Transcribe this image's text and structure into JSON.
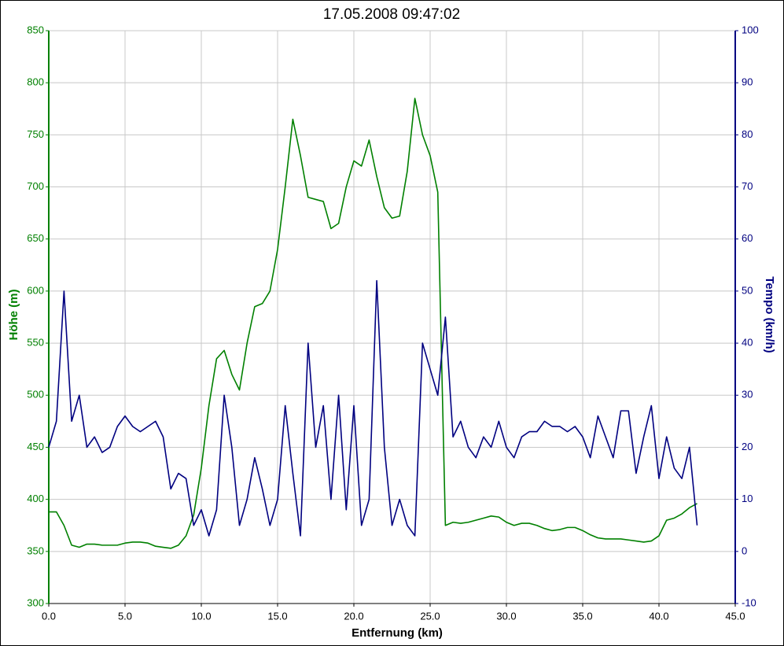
{
  "chart_data": {
    "type": "line",
    "title": "17.05.2008 09:47:02",
    "x_label": "Entfernung (km)",
    "y_label": "Höhe (m)",
    "y2_label": "Tempo (km/h)",
    "x": [
      0,
      0.5,
      1,
      1.5,
      2,
      2.5,
      3,
      3.5,
      4,
      4.5,
      5,
      5.5,
      6,
      6.5,
      7,
      7.5,
      8,
      8.5,
      9,
      9.5,
      10,
      10.5,
      11,
      11.5,
      12,
      12.5,
      13,
      13.5,
      14,
      14.5,
      15,
      15.5,
      16,
      16.5,
      17,
      17.5,
      18,
      18.5,
      19,
      19.5,
      20,
      20.5,
      21,
      21.5,
      22,
      22.5,
      23,
      23.5,
      24,
      24.5,
      25,
      25.5,
      26,
      26.5,
      27,
      27.5,
      28,
      28.5,
      29,
      29.5,
      30,
      30.5,
      31,
      31.5,
      32,
      32.5,
      33,
      33.5,
      34,
      34.5,
      35,
      35.5,
      36,
      36.5,
      37,
      37.5,
      38,
      38.5,
      39,
      39.5,
      40,
      40.5,
      41,
      41.5,
      42,
      42.5
    ],
    "series": [
      {
        "name": "Höhe (m)",
        "color": "#008000",
        "axis": "y",
        "values": [
          388,
          388,
          375,
          356,
          354,
          357,
          357,
          356,
          356,
          356,
          358,
          359,
          359,
          358,
          355,
          354,
          353,
          356,
          365,
          385,
          430,
          490,
          535,
          543,
          520,
          505,
          550,
          585,
          588,
          600,
          640,
          700,
          765,
          730,
          690,
          688,
          686,
          660,
          665,
          700,
          725,
          720,
          745,
          710,
          680,
          670,
          672,
          715,
          785,
          750,
          730,
          695,
          375,
          378,
          377,
          378,
          380,
          382,
          384,
          383,
          378,
          375,
          377,
          377,
          375,
          372,
          370,
          371,
          373,
          373,
          370,
          366,
          363,
          362,
          362,
          362,
          361,
          360,
          359,
          360,
          365,
          380,
          382,
          386,
          392,
          396
        ]
      },
      {
        "name": "Tempo (km/h)",
        "color": "#000080",
        "axis": "y2",
        "values": [
          20,
          25,
          50,
          25,
          30,
          20,
          22,
          19,
          20,
          24,
          26,
          24,
          23,
          24,
          25,
          22,
          12,
          15,
          14,
          5,
          8,
          3,
          8,
          30,
          20,
          5,
          10,
          18,
          12,
          5,
          10,
          28,
          15,
          3,
          40,
          20,
          28,
          10,
          30,
          8,
          28,
          5,
          10,
          52,
          20,
          5,
          10,
          5,
          3,
          40,
          35,
          30,
          45,
          22,
          25,
          20,
          18,
          22,
          20,
          25,
          20,
          18,
          22,
          23,
          23,
          25,
          24,
          24,
          23,
          24,
          22,
          18,
          26,
          22,
          18,
          27,
          27,
          15,
          22,
          28,
          14,
          22,
          16,
          14,
          20,
          5
        ]
      }
    ],
    "xlim": [
      0,
      45
    ],
    "xticks": [
      {
        "value": 0,
        "label": "0.0"
      },
      {
        "value": 5,
        "label": "5.0"
      },
      {
        "value": 10,
        "label": "10.0"
      },
      {
        "value": 15,
        "label": "15.0"
      },
      {
        "value": 20,
        "label": "20.0"
      },
      {
        "value": 25,
        "label": "25.0"
      },
      {
        "value": 30,
        "label": "30.0"
      },
      {
        "value": 35,
        "label": "35.0"
      },
      {
        "value": 40,
        "label": "40.0"
      },
      {
        "value": 45,
        "label": "45.0"
      }
    ],
    "ylim": [
      300,
      850
    ],
    "yticks": [
      300,
      350,
      400,
      450,
      500,
      550,
      600,
      650,
      700,
      750,
      800,
      850
    ],
    "y2lim": [
      -10,
      100
    ],
    "y2ticks": [
      -10,
      0,
      10,
      20,
      30,
      40,
      50,
      60,
      70,
      80,
      90,
      100
    ],
    "grid": true
  }
}
